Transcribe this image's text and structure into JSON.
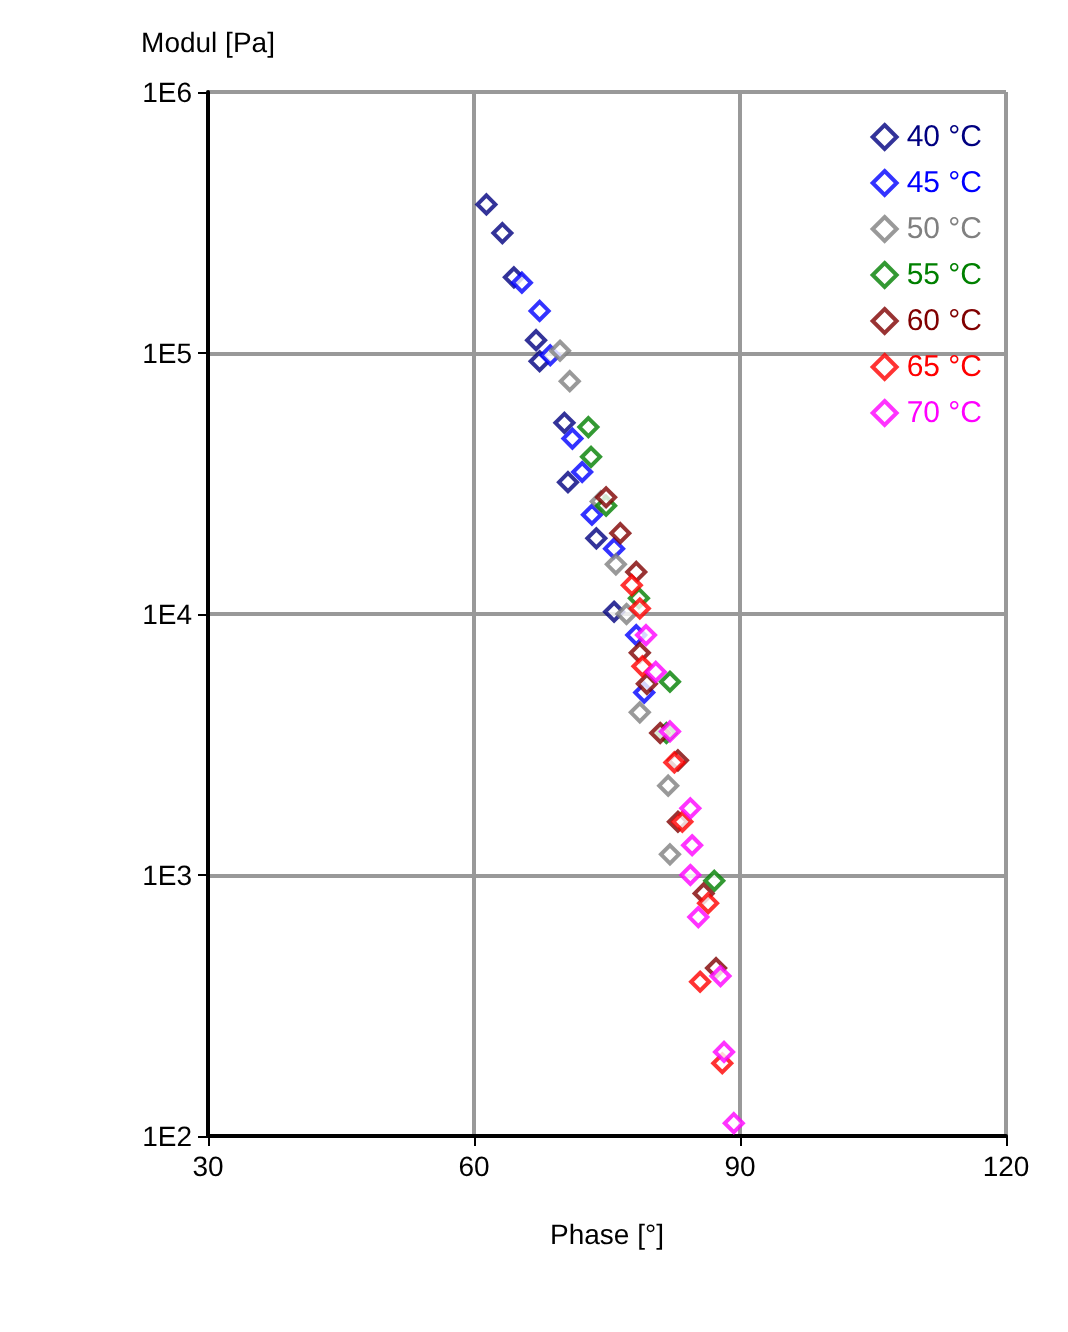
{
  "chart_data": {
    "type": "scatter",
    "xlabel": "Phase [°]",
    "ylabel": "Modul [Pa]",
    "log": "y",
    "xlim": [
      30,
      120
    ],
    "xticks": [
      30,
      60,
      90,
      120
    ],
    "ylim": [
      100,
      1000000
    ],
    "yticks": [
      {
        "value": 100,
        "label": "1E2"
      },
      {
        "value": 1000,
        "label": "1E3"
      },
      {
        "value": 10000,
        "label": "1E4"
      },
      {
        "value": 100000,
        "label": "1E5"
      },
      {
        "value": 1000000,
        "label": "1E6"
      }
    ],
    "grid": true,
    "legend": "top right",
    "marker": "diamond",
    "series": [
      {
        "name": "40 °C",
        "color": "#000080",
        "x": [
          61.4,
          63.2,
          64.5,
          67.0,
          67.4,
          70.2,
          70.6,
          73.8,
          75.8
        ],
        "values": [
          371000,
          288000,
          195000,
          112000,
          93000,
          54000,
          32000,
          19500,
          10200
        ]
      },
      {
        "name": "45 °C",
        "color": "#0000ff",
        "x": [
          65.4,
          67.4,
          68.6,
          71.1,
          72.2,
          73.3,
          75.8,
          78.3,
          79.2
        ],
        "values": [
          186000,
          145000,
          98000,
          47000,
          35000,
          24000,
          17800,
          8300,
          5000
        ]
      },
      {
        "name": "50 °C",
        "color": "#808080",
        "x": [
          69.7,
          70.8,
          74.3,
          76.0,
          77.2,
          78.7,
          81.9,
          82.1
        ],
        "values": [
          102000,
          78000,
          27000,
          15500,
          10000,
          4200,
          2200,
          1200
        ]
      },
      {
        "name": "55 °C",
        "color": "#008000",
        "x": [
          72.9,
          73.2,
          74.9,
          78.6,
          82.1,
          81.7,
          87.1
        ],
        "values": [
          52000,
          40000,
          26000,
          11500,
          5500,
          3500,
          950
        ]
      },
      {
        "name": "60 °C",
        "color": "#800000",
        "x": [
          74.9,
          76.5,
          78.3,
          78.7,
          79.5,
          81.0,
          83.0,
          83.0,
          85.9,
          87.3
        ],
        "values": [
          28000,
          20400,
          14500,
          7100,
          5400,
          3500,
          2750,
          1600,
          850,
          440
        ]
      },
      {
        "name": "65 °C",
        "color": "#ff0000",
        "x": [
          77.8,
          78.7,
          79.0,
          82.6,
          83.5,
          86.4,
          85.5,
          88.0
        ],
        "values": [
          12900,
          10500,
          6300,
          2700,
          1600,
          780,
          390,
          190
        ]
      },
      {
        "name": "70 °C",
        "color": "#ff00ff",
        "x": [
          79.4,
          80.5,
          82.1,
          84.4,
          84.6,
          84.4,
          85.3,
          87.8,
          88.2,
          89.3
        ],
        "values": [
          8300,
          6000,
          3550,
          1800,
          1300,
          1000,
          690,
          410,
          210,
          112
        ]
      }
    ]
  }
}
